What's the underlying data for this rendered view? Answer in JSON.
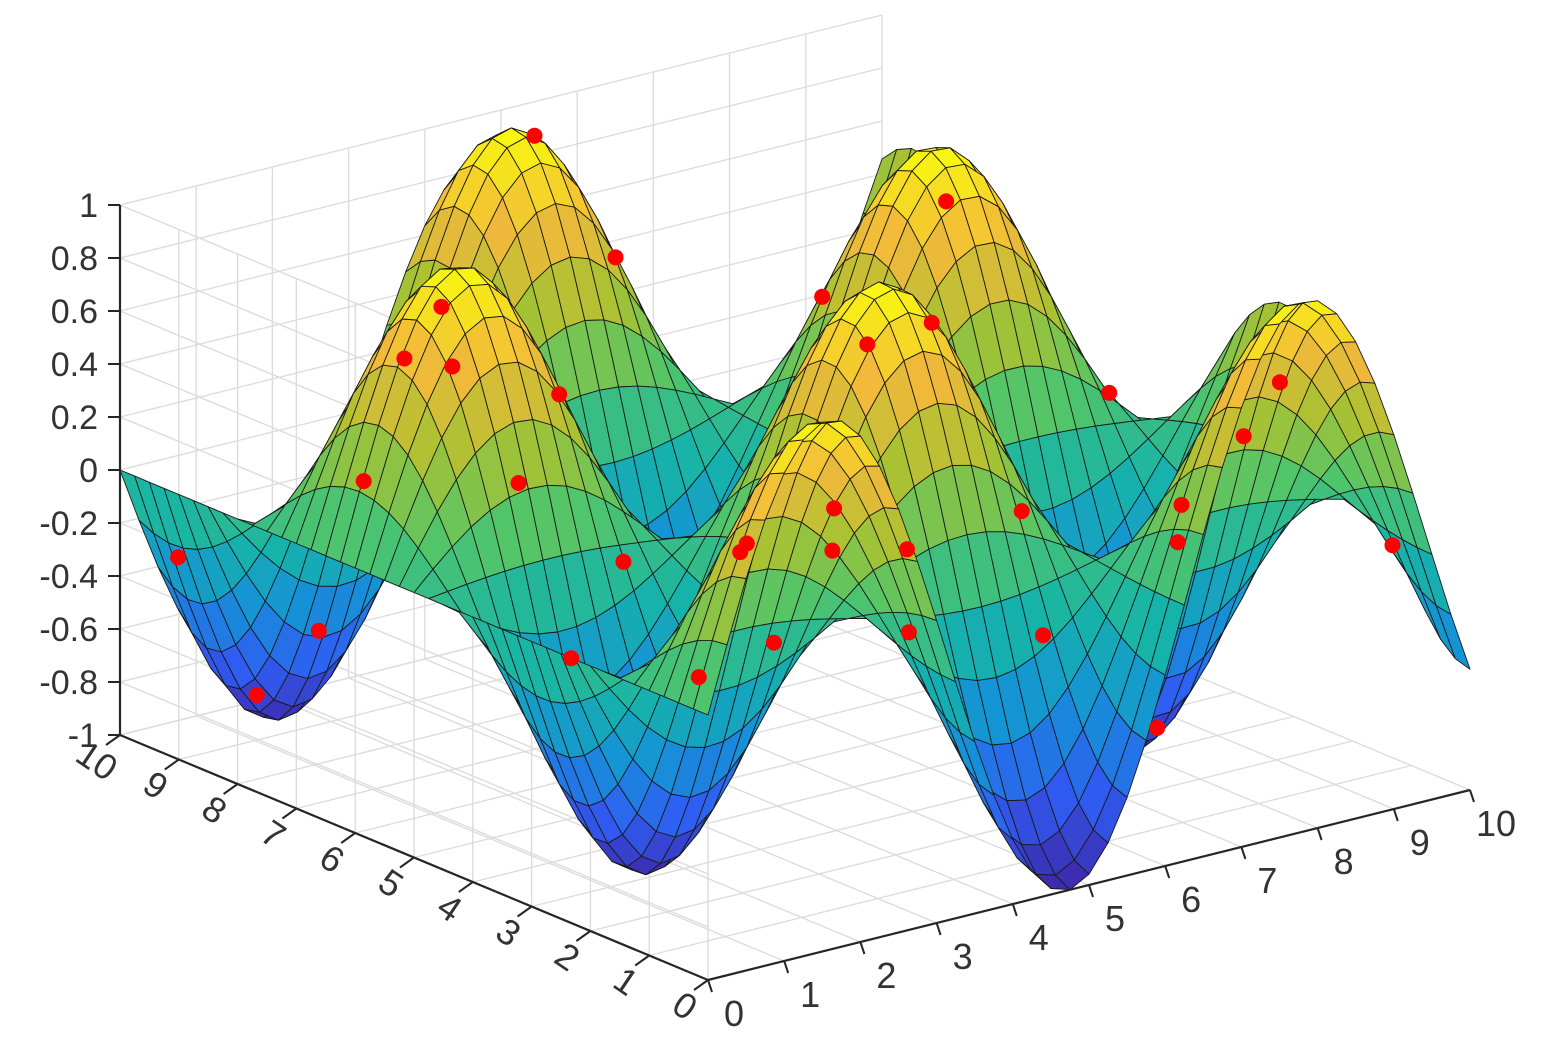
{
  "chart_data": {
    "type": "surface3d",
    "title": "",
    "xlabel": "",
    "ylabel": "",
    "zlabel": "",
    "xlim": [
      0,
      10
    ],
    "ylim": [
      0,
      10
    ],
    "zlim": [
      -1,
      1
    ],
    "x_ticks": [
      0,
      1,
      2,
      3,
      4,
      5,
      6,
      7,
      8,
      9,
      10
    ],
    "y_ticks": [
      0,
      1,
      2,
      3,
      4,
      5,
      6,
      7,
      8,
      9,
      10
    ],
    "z_ticks": [
      -1,
      -0.8,
      -0.6,
      -0.4,
      -0.2,
      0,
      0.2,
      0.4,
      0.6,
      0.8,
      1
    ],
    "z_tick_labels": [
      "-1",
      "-0.8",
      "-0.6",
      "-0.4",
      "-0.2",
      "0",
      "0.2",
      "0.4",
      "0.6",
      "0.8",
      "1"
    ],
    "surface": {
      "function": "z = sin(x) * cos(y)",
      "x_range": [
        0,
        10
      ],
      "y_range": [
        0,
        10
      ],
      "grid_lines_x": 40,
      "grid_lines_y": 40,
      "colormap": [
        "#3e26a8",
        "#2f5df3",
        "#1593d6",
        "#16b4a8",
        "#52c569",
        "#a9c232",
        "#f2b93a",
        "#f9fb0e"
      ]
    },
    "markers": {
      "color": "#ff0000",
      "points": [
        {
          "x": 0.3,
          "y": 9.4
        },
        {
          "x": 1.1,
          "y": 9.1
        },
        {
          "x": 2.3,
          "y": 9.6
        },
        {
          "x": 3.6,
          "y": 9.2
        },
        {
          "x": 4.9,
          "y": 9.3
        },
        {
          "x": 5.5,
          "y": 8.7
        },
        {
          "x": 7.3,
          "y": 8.8
        },
        {
          "x": 8.6,
          "y": 9.0
        },
        {
          "x": 1.5,
          "y": 7.8
        },
        {
          "x": 2.2,
          "y": 7.2
        },
        {
          "x": 3.3,
          "y": 7.5
        },
        {
          "x": 4.6,
          "y": 7.4
        },
        {
          "x": 6.9,
          "y": 7.0
        },
        {
          "x": 8.8,
          "y": 7.6
        },
        {
          "x": 0.8,
          "y": 6.2
        },
        {
          "x": 2.6,
          "y": 5.9
        },
        {
          "x": 4.2,
          "y": 5.6
        },
        {
          "x": 5.8,
          "y": 5.4
        },
        {
          "x": 7.6,
          "y": 5.8
        },
        {
          "x": 9.2,
          "y": 5.1
        },
        {
          "x": 1.6,
          "y": 4.4
        },
        {
          "x": 3.2,
          "y": 3.6
        },
        {
          "x": 5.1,
          "y": 3.9
        },
        {
          "x": 6.2,
          "y": 2.7
        },
        {
          "x": 7.9,
          "y": 2.6
        },
        {
          "x": 9.5,
          "y": 3.2
        },
        {
          "x": 2.1,
          "y": 1.6
        },
        {
          "x": 4.0,
          "y": 1.8
        },
        {
          "x": 5.4,
          "y": 1.3
        },
        {
          "x": 7.4,
          "y": 1.6
        },
        {
          "x": 8.2,
          "y": 0.9
        },
        {
          "x": 9.6,
          "y": 0.8
        },
        {
          "x": 3.1,
          "y": 0.6
        },
        {
          "x": 6.6,
          "y": 0.5
        }
      ]
    }
  }
}
